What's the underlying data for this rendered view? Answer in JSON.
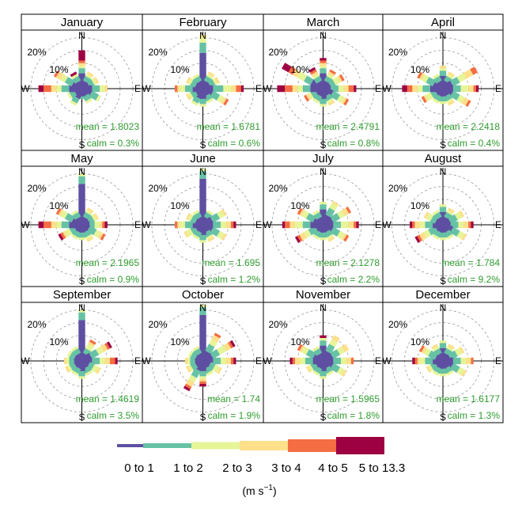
{
  "chart_data": {
    "type": "windrose",
    "panel_count": 12,
    "direction_labels": [
      "N",
      "E",
      "S",
      "W"
    ],
    "ring_labels": [
      "10%",
      "20%"
    ],
    "rings_percent": [
      5,
      10,
      15,
      20
    ],
    "max_percent": 22,
    "speed_bins": [
      {
        "label": "0 to 1",
        "color": "#5e4fa2"
      },
      {
        "label": "1 to 2",
        "color": "#66c2a5"
      },
      {
        "label": "2 to 3",
        "color": "#e6f598"
      },
      {
        "label": "3 to 4",
        "color": "#fee08b"
      },
      {
        "label": "4 to 5",
        "color": "#f46d43"
      },
      {
        "label": "5 to 13.3",
        "color": "#9e0142"
      }
    ],
    "units_label": "(m s",
    "units_exp": "−1",
    "units_close": ")",
    "directions_deg": [
      0,
      30,
      60,
      90,
      120,
      150,
      180,
      210,
      240,
      270,
      300,
      330
    ],
    "panels": [
      {
        "title": "January",
        "mean": "mean = 1.8023",
        "calm": "calm = 0.3%",
        "freq": [
          [
            6,
            2,
            1,
            1,
            1,
            4
          ],
          [
            3,
            2,
            1,
            1,
            0,
            0
          ],
          [
            3,
            2,
            1,
            1,
            0,
            0
          ],
          [
            4,
            3,
            2,
            1,
            0,
            0
          ],
          [
            4,
            3,
            1,
            0,
            0,
            0
          ],
          [
            3,
            2,
            1,
            0,
            0,
            0
          ],
          [
            3,
            1,
            0,
            0,
            0,
            0
          ],
          [
            4,
            2,
            1,
            0,
            0,
            0
          ],
          [
            3,
            2,
            1,
            0,
            0,
            0
          ],
          [
            5,
            3,
            2,
            2,
            3,
            2
          ],
          [
            4,
            3,
            2,
            2,
            1,
            0
          ],
          [
            3,
            2,
            1,
            0,
            0,
            1
          ]
        ]
      },
      {
        "title": "February",
        "mean": "mean = 1.6781",
        "calm": "calm = 0.6%",
        "freq": [
          [
            14,
            4,
            2,
            1,
            0,
            0
          ],
          [
            3,
            2,
            1,
            1,
            0,
            0
          ],
          [
            3,
            2,
            1,
            1,
            0,
            0
          ],
          [
            4,
            4,
            3,
            2,
            2,
            1
          ],
          [
            4,
            3,
            2,
            1,
            1,
            0
          ],
          [
            3,
            2,
            1,
            0,
            0,
            0
          ],
          [
            4,
            2,
            1,
            0,
            0,
            0
          ],
          [
            4,
            2,
            1,
            0,
            0,
            0
          ],
          [
            3,
            2,
            1,
            1,
            0,
            0
          ],
          [
            4,
            3,
            2,
            1,
            1,
            0
          ],
          [
            3,
            2,
            1,
            1,
            0,
            0
          ],
          [
            3,
            2,
            1,
            0,
            0,
            0
          ]
        ]
      },
      {
        "title": "March",
        "mean": "mean = 2.4791",
        "calm": "calm = 0.8%",
        "freq": [
          [
            6,
            2,
            1,
            1,
            1,
            1
          ],
          [
            3,
            2,
            1,
            1,
            1,
            0
          ],
          [
            3,
            2,
            2,
            1,
            1,
            0
          ],
          [
            3,
            3,
            2,
            2,
            2,
            1
          ],
          [
            4,
            3,
            2,
            1,
            1,
            0
          ],
          [
            3,
            2,
            1,
            1,
            0,
            0
          ],
          [
            4,
            2,
            1,
            0,
            0,
            0
          ],
          [
            3,
            2,
            1,
            0,
            0,
            0
          ],
          [
            3,
            2,
            1,
            1,
            1,
            0
          ],
          [
            5,
            3,
            2,
            2,
            3,
            3
          ],
          [
            5,
            3,
            3,
            2,
            2,
            3
          ],
          [
            3,
            2,
            1,
            1,
            1,
            1
          ]
        ]
      },
      {
        "title": "April",
        "mean": "mean = 2.2418",
        "calm": "calm = 0.4%",
        "freq": [
          [
            5,
            2,
            1,
            1,
            0,
            0
          ],
          [
            3,
            2,
            1,
            1,
            0,
            0
          ],
          [
            4,
            3,
            3,
            3,
            2,
            0
          ],
          [
            4,
            3,
            3,
            2,
            1,
            1
          ],
          [
            4,
            3,
            2,
            2,
            1,
            0
          ],
          [
            3,
            2,
            1,
            1,
            0,
            0
          ],
          [
            3,
            2,
            1,
            0,
            0,
            0
          ],
          [
            3,
            2,
            1,
            0,
            0,
            0
          ],
          [
            3,
            2,
            2,
            1,
            1,
            0
          ],
          [
            5,
            3,
            2,
            2,
            2,
            2
          ],
          [
            4,
            3,
            2,
            1,
            1,
            0
          ],
          [
            3,
            2,
            1,
            0,
            0,
            0
          ]
        ]
      },
      {
        "title": "May",
        "mean": "mean = 2.1965",
        "calm": "calm = 0.9%",
        "freq": [
          [
            16,
            3,
            1,
            0,
            0,
            0
          ],
          [
            3,
            2,
            1,
            1,
            0,
            0
          ],
          [
            3,
            2,
            1,
            1,
            0,
            0
          ],
          [
            3,
            2,
            2,
            1,
            1,
            1
          ],
          [
            3,
            3,
            2,
            1,
            1,
            0
          ],
          [
            3,
            2,
            1,
            1,
            0,
            0
          ],
          [
            3,
            2,
            1,
            0,
            0,
            0
          ],
          [
            3,
            2,
            1,
            0,
            0,
            0
          ],
          [
            3,
            2,
            2,
            1,
            1,
            1
          ],
          [
            5,
            3,
            2,
            2,
            3,
            2
          ],
          [
            4,
            3,
            2,
            1,
            1,
            0
          ],
          [
            3,
            2,
            1,
            0,
            0,
            0
          ]
        ]
      },
      {
        "title": "June",
        "mean": "mean = 1.695",
        "calm": "calm = 1.2%",
        "freq": [
          [
            18,
            3,
            1,
            0,
            0,
            0
          ],
          [
            3,
            2,
            1,
            0,
            0,
            0
          ],
          [
            4,
            3,
            2,
            1,
            0,
            0
          ],
          [
            4,
            3,
            2,
            2,
            1,
            1
          ],
          [
            4,
            3,
            2,
            1,
            0,
            0
          ],
          [
            3,
            2,
            1,
            1,
            0,
            0
          ],
          [
            4,
            2,
            1,
            0,
            0,
            0
          ],
          [
            3,
            2,
            1,
            0,
            0,
            0
          ],
          [
            3,
            2,
            2,
            1,
            0,
            0
          ],
          [
            4,
            3,
            2,
            1,
            1,
            0
          ],
          [
            3,
            2,
            1,
            1,
            0,
            0
          ],
          [
            3,
            2,
            1,
            0,
            0,
            0
          ]
        ]
      },
      {
        "title": "July",
        "mean": "mean = 2.1278",
        "calm": "calm = 2.2%",
        "freq": [
          [
            6,
            2,
            1,
            0,
            0,
            0
          ],
          [
            4,
            3,
            2,
            1,
            0,
            0
          ],
          [
            4,
            3,
            2,
            2,
            1,
            0
          ],
          [
            4,
            3,
            3,
            2,
            1,
            1
          ],
          [
            4,
            3,
            2,
            1,
            1,
            0
          ],
          [
            3,
            2,
            1,
            1,
            0,
            0
          ],
          [
            3,
            2,
            1,
            0,
            0,
            0
          ],
          [
            3,
            2,
            1,
            0,
            0,
            0
          ],
          [
            3,
            3,
            2,
            2,
            1,
            1
          ],
          [
            5,
            3,
            3,
            2,
            2,
            1
          ],
          [
            4,
            3,
            2,
            1,
            1,
            0
          ],
          [
            3,
            2,
            1,
            0,
            0,
            0
          ]
        ]
      },
      {
        "title": "August",
        "mean": "mean = 1.784",
        "calm": "calm = 9.2%",
        "freq": [
          [
            5,
            2,
            1,
            0,
            0,
            0
          ],
          [
            3,
            2,
            1,
            1,
            0,
            0
          ],
          [
            3,
            3,
            2,
            1,
            0,
            0
          ],
          [
            3,
            3,
            2,
            2,
            1,
            1
          ],
          [
            4,
            3,
            2,
            1,
            0,
            0
          ],
          [
            3,
            2,
            1,
            0,
            0,
            0
          ],
          [
            3,
            2,
            1,
            0,
            0,
            0
          ],
          [
            3,
            2,
            1,
            0,
            0,
            0
          ],
          [
            3,
            3,
            2,
            2,
            1,
            1
          ],
          [
            4,
            3,
            2,
            2,
            1,
            1
          ],
          [
            3,
            2,
            2,
            1,
            0,
            0
          ],
          [
            3,
            2,
            1,
            0,
            0,
            0
          ]
        ]
      },
      {
        "title": "September",
        "mean": "mean = 1.4619",
        "calm": "calm = 3.5%",
        "freq": [
          [
            16,
            3,
            1,
            0,
            0,
            0
          ],
          [
            3,
            2,
            2,
            1,
            1,
            0
          ],
          [
            4,
            3,
            2,
            2,
            1,
            1
          ],
          [
            4,
            3,
            2,
            2,
            2,
            1
          ],
          [
            3,
            2,
            2,
            1,
            0,
            0
          ],
          [
            3,
            2,
            1,
            0,
            0,
            0
          ],
          [
            4,
            2,
            1,
            0,
            0,
            0
          ],
          [
            3,
            2,
            1,
            0,
            0,
            0
          ],
          [
            3,
            2,
            1,
            1,
            0,
            0
          ],
          [
            3,
            2,
            1,
            1,
            0,
            0
          ],
          [
            3,
            2,
            1,
            0,
            0,
            0
          ],
          [
            3,
            2,
            1,
            0,
            0,
            0
          ]
        ]
      },
      {
        "title": "October",
        "mean": "mean = 1.74",
        "calm": "calm = 1.9%",
        "freq": [
          [
            18,
            3,
            1,
            0,
            0,
            0
          ],
          [
            4,
            3,
            2,
            2,
            1,
            0
          ],
          [
            4,
            3,
            3,
            2,
            1,
            1
          ],
          [
            4,
            3,
            2,
            2,
            1,
            1
          ],
          [
            3,
            2,
            2,
            1,
            0,
            0
          ],
          [
            3,
            2,
            1,
            0,
            0,
            0
          ],
          [
            4,
            2,
            1,
            1,
            1,
            1
          ],
          [
            4,
            3,
            2,
            2,
            1,
            1
          ],
          [
            3,
            2,
            1,
            1,
            0,
            0
          ],
          [
            3,
            2,
            1,
            1,
            0,
            0
          ],
          [
            3,
            2,
            1,
            0,
            0,
            0
          ],
          [
            3,
            2,
            1,
            0,
            0,
            0
          ]
        ]
      },
      {
        "title": "November",
        "mean": "mean = 1.5965",
        "calm": "calm = 1.8%",
        "freq": [
          [
            6,
            2,
            1,
            0,
            0,
            1
          ],
          [
            4,
            3,
            2,
            2,
            0,
            0
          ],
          [
            4,
            3,
            2,
            2,
            0,
            0
          ],
          [
            4,
            3,
            2,
            2,
            1,
            0
          ],
          [
            4,
            3,
            2,
            1,
            0,
            0
          ],
          [
            3,
            2,
            1,
            0,
            0,
            0
          ],
          [
            4,
            2,
            1,
            0,
            0,
            0
          ],
          [
            3,
            2,
            1,
            0,
            0,
            0
          ],
          [
            3,
            2,
            1,
            1,
            0,
            0
          ],
          [
            4,
            3,
            2,
            2,
            1,
            1
          ],
          [
            4,
            3,
            2,
            1,
            1,
            0
          ],
          [
            3,
            2,
            1,
            0,
            0,
            0
          ]
        ]
      },
      {
        "title": "December",
        "mean": "mean = 1.6177",
        "calm": "calm = 1.3%",
        "freq": [
          [
            5,
            2,
            1,
            0,
            0,
            0
          ],
          [
            3,
            2,
            1,
            1,
            0,
            0
          ],
          [
            3,
            3,
            2,
            1,
            0,
            0
          ],
          [
            4,
            3,
            2,
            2,
            1,
            0
          ],
          [
            4,
            3,
            2,
            1,
            0,
            0
          ],
          [
            3,
            2,
            1,
            0,
            0,
            0
          ],
          [
            3,
            2,
            1,
            0,
            0,
            0
          ],
          [
            3,
            2,
            1,
            0,
            0,
            0
          ],
          [
            3,
            2,
            1,
            1,
            0,
            0
          ],
          [
            4,
            3,
            2,
            1,
            1,
            1
          ],
          [
            3,
            3,
            2,
            1,
            1,
            0
          ],
          [
            3,
            2,
            1,
            1,
            0,
            0
          ]
        ]
      }
    ]
  }
}
